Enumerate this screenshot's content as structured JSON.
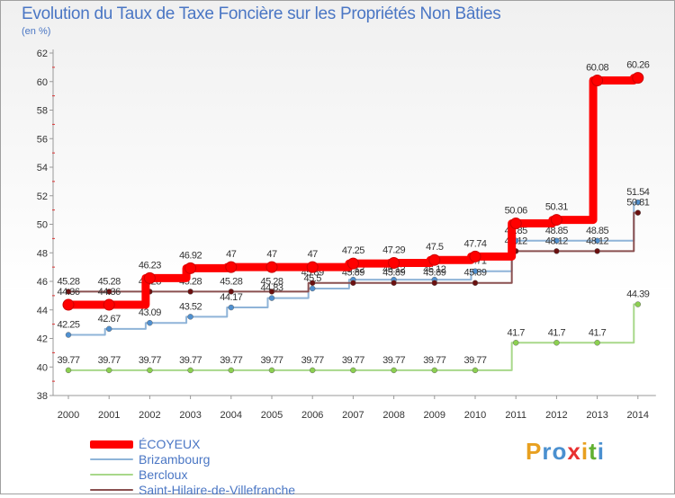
{
  "title": "Evolution du Taux de Taxe Foncière sur les Propriétés Non Bâties",
  "unit_label": "(en %)",
  "logo": {
    "text": "Proxiti",
    "letters": [
      "P",
      "r",
      "o",
      "x",
      "i",
      "t",
      "i"
    ],
    "colors": [
      "#e8a020",
      "#4a90d0",
      "#4a90d0",
      "#e83030",
      "#e8a020",
      "#60b030",
      "#4a90d0"
    ]
  },
  "chart_data": {
    "type": "line",
    "title": "Evolution du Taux de Taxe Foncière sur les Propriétés Non Bâties",
    "ylabel": "(en %)",
    "xlabel": "",
    "ylim": [
      38,
      62
    ],
    "yticks": [
      38,
      40,
      42,
      44,
      46,
      48,
      50,
      52,
      54,
      56,
      58,
      60,
      62
    ],
    "categories": [
      "2000",
      "2001",
      "2002",
      "2003",
      "2004",
      "2005",
      "2006",
      "2007",
      "2008",
      "2009",
      "2010",
      "2011",
      "2012",
      "2013",
      "2014"
    ],
    "series": [
      {
        "name": "Bercloux",
        "color": "#a8d88a",
        "marker": "#8cd050",
        "values": [
          39.77,
          39.77,
          39.77,
          39.77,
          39.77,
          39.77,
          39.77,
          39.77,
          39.77,
          39.77,
          39.77,
          41.7,
          41.7,
          41.7,
          44.39
        ],
        "labels": [
          "39.77",
          "39.77",
          "39.77",
          "39.77",
          "39.77",
          "39.77",
          "39.77",
          "39.77",
          "39.77",
          "39.77",
          "39.77",
          "41.7",
          "41.7",
          "41.7",
          "44.39"
        ]
      },
      {
        "name": "Brizambourg",
        "color": "#8fb4d8",
        "marker": "#4f90d0",
        "values": [
          42.25,
          42.67,
          43.09,
          43.52,
          44.17,
          44.83,
          45.5,
          46.12,
          46.12,
          46.12,
          46.71,
          48.85,
          48.85,
          48.85,
          51.54
        ],
        "labels": [
          "42.25",
          "42.67",
          "43.09",
          "43.52",
          "44.17",
          "44.83",
          "45.5",
          "46.12",
          "46.12",
          "46.12",
          "46.71",
          "48.85",
          "48.85",
          "48.85",
          "51.54"
        ]
      },
      {
        "name": "Saint-Hilaire-de-Villefranche",
        "color": "#8a5050",
        "marker": "#6a1010",
        "values": [
          45.28,
          45.28,
          45.28,
          45.28,
          45.28,
          45.28,
          45.89,
          45.89,
          45.89,
          45.89,
          45.89,
          48.12,
          48.12,
          48.12,
          50.81
        ],
        "labels": [
          "45.28",
          "45.28",
          "45.28",
          "45.28",
          "45.28",
          "45.28",
          "45.89",
          "45.89",
          "45.89",
          "45.89",
          "45.89",
          "48.12",
          "48.12",
          "48.12",
          "50.81"
        ]
      },
      {
        "name": "ÉCOYEUX",
        "color": "#ff0000",
        "marker": "#ff0000",
        "values": [
          44.36,
          44.36,
          46.23,
          46.92,
          47,
          47,
          47,
          47.25,
          47.29,
          47.5,
          47.74,
          50.06,
          50.31,
          60.08,
          60.26
        ],
        "labels": [
          "44.36",
          "44.36",
          "46.23",
          "46.92",
          "47",
          "47",
          "47",
          "47.25",
          "47.29",
          "47.5",
          "47.74",
          "50.06",
          "50.31",
          "60.08",
          "60.26"
        ]
      }
    ],
    "legend": [
      "ÉCOYEUX",
      "Brizambourg",
      "Bercloux",
      "Saint-Hilaire-de-Villefranche"
    ],
    "legend_colors": [
      "#ff0000",
      "#8fb4d8",
      "#a8d88a",
      "#8a5050"
    ],
    "legend_position": "bottom-left",
    "grid": false
  }
}
